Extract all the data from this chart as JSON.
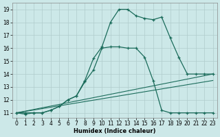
{
  "xlabel": "Humidex (Indice chaleur)",
  "background_color": "#cce8e8",
  "grid_color": "#b0cccc",
  "line_color": "#1a6b5a",
  "xlim_min": -0.5,
  "xlim_max": 23.5,
  "ylim_min": 10.6,
  "ylim_max": 19.5,
  "xticks": [
    0,
    1,
    2,
    3,
    4,
    5,
    6,
    7,
    8,
    9,
    10,
    11,
    12,
    13,
    14,
    15,
    16,
    17,
    18,
    19,
    20,
    21,
    22,
    23
  ],
  "yticks": [
    11,
    12,
    13,
    14,
    15,
    16,
    17,
    18,
    19
  ],
  "main_curve_x": [
    0,
    1,
    2,
    3,
    4,
    5,
    6,
    7,
    8,
    9,
    10,
    11,
    12,
    13,
    14,
    15,
    16,
    17,
    18,
    19,
    20,
    21,
    22,
    23
  ],
  "main_curve_y": [
    11,
    10.9,
    11,
    11,
    11.2,
    11.5,
    12,
    12.3,
    13.5,
    15.2,
    16.1,
    18,
    19,
    19,
    18.5,
    18.3,
    18.2,
    18.4,
    16.8,
    15.3,
    14,
    14,
    14,
    14
  ],
  "second_curve_x": [
    0,
    1,
    2,
    3,
    4,
    5,
    6,
    7,
    8,
    9,
    10,
    11,
    12,
    13,
    14,
    15,
    16,
    17,
    18,
    19,
    20,
    21,
    22,
    23
  ],
  "second_curve_y": [
    11,
    11,
    11,
    11,
    11.2,
    11.5,
    12,
    12.3,
    13.4,
    14.3,
    16,
    16.1,
    16.1,
    16,
    16,
    15.3,
    13.5,
    11.2,
    11,
    11,
    11,
    11,
    11,
    11
  ],
  "line3_x": [
    0,
    23
  ],
  "line3_y": [
    11,
    14
  ],
  "line4_x": [
    0,
    23
  ],
  "line4_y": [
    11,
    13.5
  ]
}
